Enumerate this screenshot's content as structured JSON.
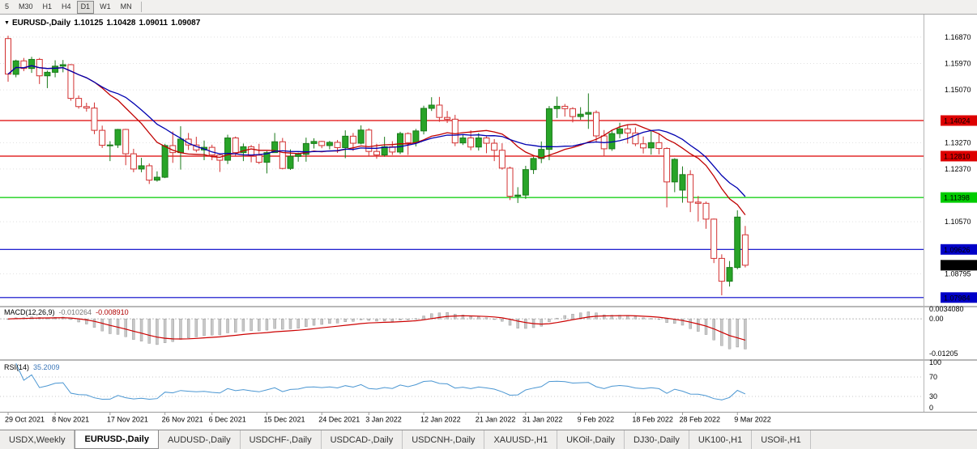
{
  "icons": {
    "dropdown": "▼"
  },
  "toolbar": {
    "timeframes": [
      {
        "label": "5",
        "active": false
      },
      {
        "label": "M30",
        "active": false
      },
      {
        "label": "H1",
        "active": false
      },
      {
        "label": "H4",
        "active": false
      },
      {
        "label": "D1",
        "active": true
      },
      {
        "label": "W1",
        "active": false
      },
      {
        "label": "MN",
        "active": false
      }
    ]
  },
  "chart": {
    "symbol_title": "EURUSD-,Daily",
    "open": "1.10125",
    "high": "1.10428",
    "low": "1.09011",
    "close": "1.09087",
    "price_axis_labels": [
      "1.16870",
      "1.15970",
      "1.15070",
      "1.13270",
      "1.12370",
      "1.10570",
      "1.08795"
    ],
    "hlines": [
      {
        "label": "1.14024",
        "value": 1.14024,
        "color": "#DD0000",
        "text_color": "#FFFFFF"
      },
      {
        "label": "1.12810",
        "value": 1.1281,
        "color": "#DD0000",
        "text_color": "#FFFFFF"
      },
      {
        "label": "1.11398",
        "value": 1.11398,
        "color": "#00CC00",
        "text_color": "#000000"
      },
      {
        "label": "1.09626",
        "value": 1.09626,
        "color": "#0000C8",
        "text_color": "#FFFFFF"
      },
      {
        "label": "1.07984",
        "value": 1.07984,
        "color": "#0000C8",
        "text_color": "#FFFFFF"
      }
    ],
    "current_price_tag": {
      "label": "1.09087",
      "value": 1.09087,
      "color": "#000000",
      "text_color": "#FFFFFF"
    },
    "colors": {
      "bull_fill": "#28A428",
      "bull_stroke": "#1A7A1A",
      "bear_fill": "#FFFFFF",
      "bear_stroke": "#D23030"
    }
  },
  "chart_data": {
    "type": "candlestick",
    "symbol": "EURUSD",
    "timeframe": "Daily",
    "y_range": [
      1.0773,
      1.1753
    ],
    "overlays": [
      {
        "name": "ma-fast-line",
        "period": 12,
        "color": "#C00000"
      },
      {
        "name": "ma-slow-line",
        "period": 16,
        "color": "#0000B0"
      }
    ],
    "date_ticks": [
      {
        "label": "29 Oct 2021",
        "index": 0
      },
      {
        "label": "8 Nov 2021",
        "index": 6
      },
      {
        "label": "17 Nov 2021",
        "index": 13
      },
      {
        "label": "26 Nov 2021",
        "index": 20
      },
      {
        "label": "6 Dec 2021",
        "index": 26
      },
      {
        "label": "15 Dec 2021",
        "index": 33
      },
      {
        "label": "24 Dec 2021",
        "index": 40
      },
      {
        "label": "3 Jan 2022",
        "index": 46
      },
      {
        "label": "12 Jan 2022",
        "index": 53
      },
      {
        "label": "21 Jan 2022",
        "index": 60
      },
      {
        "label": "31 Jan 2022",
        "index": 66
      },
      {
        "label": "9 Feb 2022",
        "index": 73
      },
      {
        "label": "18 Feb 2022",
        "index": 80
      },
      {
        "label": "28 Feb 2022",
        "index": 86
      },
      {
        "label": "9 Mar 2022",
        "index": 93
      }
    ],
    "candles": [
      [
        1.1682,
        1.1692,
        1.1535,
        1.1561
      ],
      [
        1.156,
        1.161,
        1.155,
        1.1606
      ],
      [
        1.1606,
        1.1616,
        1.1571,
        1.158
      ],
      [
        1.158,
        1.162,
        1.1565,
        1.1611
      ],
      [
        1.1611,
        1.1616,
        1.1527,
        1.1555
      ],
      [
        1.1555,
        1.1573,
        1.1513,
        1.1567
      ],
      [
        1.1567,
        1.1608,
        1.155,
        1.1588
      ],
      [
        1.1588,
        1.1609,
        1.1567,
        1.1593
      ],
      [
        1.1593,
        1.1595,
        1.147,
        1.1478
      ],
      [
        1.1478,
        1.1488,
        1.1443,
        1.145
      ],
      [
        1.145,
        1.1463,
        1.1433,
        1.1445
      ],
      [
        1.1445,
        1.1464,
        1.1356,
        1.1369
      ],
      [
        1.1369,
        1.1385,
        1.1309,
        1.1318
      ],
      [
        1.1318,
        1.1332,
        1.1264,
        1.1319
      ],
      [
        1.1319,
        1.1374,
        1.1309,
        1.1372
      ],
      [
        1.1372,
        1.1374,
        1.125,
        1.1289
      ],
      [
        1.1289,
        1.1306,
        1.1226,
        1.1237
      ],
      [
        1.1237,
        1.1275,
        1.1226,
        1.1248
      ],
      [
        1.1248,
        1.1256,
        1.1186,
        1.1199
      ],
      [
        1.1199,
        1.1229,
        1.1194,
        1.1209
      ],
      [
        1.1209,
        1.1323,
        1.1206,
        1.1317
      ],
      [
        1.1317,
        1.1365,
        1.1258,
        1.1293
      ],
      [
        1.1293,
        1.1383,
        1.1235,
        1.1339
      ],
      [
        1.1339,
        1.136,
        1.1302,
        1.1319
      ],
      [
        1.1319,
        1.1347,
        1.1294,
        1.1302
      ],
      [
        1.1302,
        1.1334,
        1.1267,
        1.1311
      ],
      [
        1.1311,
        1.132,
        1.1267,
        1.1285
      ],
      [
        1.1285,
        1.1288,
        1.1227,
        1.1267
      ],
      [
        1.1267,
        1.1354,
        1.1254,
        1.1343
      ],
      [
        1.1343,
        1.1348,
        1.1282,
        1.1293
      ],
      [
        1.1293,
        1.1324,
        1.1264,
        1.1313
      ],
      [
        1.1313,
        1.1319,
        1.126,
        1.1284
      ],
      [
        1.1284,
        1.1323,
        1.1254,
        1.126
      ],
      [
        1.126,
        1.1298,
        1.1222,
        1.1293
      ],
      [
        1.1293,
        1.136,
        1.1292,
        1.133
      ],
      [
        1.133,
        1.1343,
        1.1236,
        1.1239
      ],
      [
        1.1239,
        1.1304,
        1.1234,
        1.128
      ],
      [
        1.128,
        1.1293,
        1.1262,
        1.1287
      ],
      [
        1.1287,
        1.1344,
        1.1262,
        1.1324
      ],
      [
        1.1324,
        1.1342,
        1.1307,
        1.1331
      ],
      [
        1.1331,
        1.1333,
        1.1308,
        1.1317
      ],
      [
        1.1317,
        1.1333,
        1.1304,
        1.1328
      ],
      [
        1.1328,
        1.1336,
        1.1292,
        1.131
      ],
      [
        1.131,
        1.1369,
        1.1274,
        1.1349
      ],
      [
        1.1349,
        1.136,
        1.1299,
        1.1325
      ],
      [
        1.1325,
        1.1386,
        1.1321,
        1.137
      ],
      [
        1.137,
        1.1376,
        1.1279,
        1.1297
      ],
      [
        1.1297,
        1.1323,
        1.1272,
        1.1285
      ],
      [
        1.1285,
        1.1347,
        1.1279,
        1.1313
      ],
      [
        1.1313,
        1.1332,
        1.1285,
        1.1295
      ],
      [
        1.1295,
        1.1364,
        1.1288,
        1.1358
      ],
      [
        1.1358,
        1.1362,
        1.1285,
        1.1327
      ],
      [
        1.1327,
        1.1374,
        1.1314,
        1.1367
      ],
      [
        1.1367,
        1.1453,
        1.1355,
        1.1444
      ],
      [
        1.1444,
        1.1482,
        1.1435,
        1.1455
      ],
      [
        1.1455,
        1.1483,
        1.1398,
        1.1413
      ],
      [
        1.1413,
        1.1435,
        1.1394,
        1.1407
      ],
      [
        1.1407,
        1.1422,
        1.1315,
        1.1326
      ],
      [
        1.1326,
        1.1355,
        1.1319,
        1.1343
      ],
      [
        1.1343,
        1.1369,
        1.1301,
        1.1312
      ],
      [
        1.1312,
        1.136,
        1.13,
        1.1343
      ],
      [
        1.1343,
        1.1348,
        1.1291,
        1.1325
      ],
      [
        1.1325,
        1.1339,
        1.1264,
        1.1301
      ],
      [
        1.1301,
        1.1325,
        1.1235,
        1.124
      ],
      [
        1.124,
        1.1245,
        1.1131,
        1.1144
      ],
      [
        1.1144,
        1.1175,
        1.1121,
        1.1148
      ],
      [
        1.1148,
        1.1248,
        1.1135,
        1.1235
      ],
      [
        1.1235,
        1.1279,
        1.122,
        1.1273
      ],
      [
        1.1273,
        1.1331,
        1.1257,
        1.1304
      ],
      [
        1.1304,
        1.1452,
        1.1267,
        1.1443
      ],
      [
        1.1443,
        1.1484,
        1.1411,
        1.1451
      ],
      [
        1.1451,
        1.1459,
        1.1416,
        1.1443
      ],
      [
        1.1443,
        1.1448,
        1.1396,
        1.1416
      ],
      [
        1.1416,
        1.1448,
        1.1405,
        1.1424
      ],
      [
        1.1424,
        1.1495,
        1.1374,
        1.143
      ],
      [
        1.143,
        1.1437,
        1.133,
        1.135
      ],
      [
        1.135,
        1.137,
        1.128,
        1.1306
      ],
      [
        1.1306,
        1.1368,
        1.1299,
        1.1358
      ],
      [
        1.1358,
        1.1395,
        1.1342,
        1.1374
      ],
      [
        1.1374,
        1.1389,
        1.1324,
        1.136
      ],
      [
        1.136,
        1.1379,
        1.1315,
        1.1323
      ],
      [
        1.1323,
        1.1348,
        1.129,
        1.1309
      ],
      [
        1.1309,
        1.1368,
        1.1286,
        1.1327
      ],
      [
        1.1327,
        1.1359,
        1.1287,
        1.1307
      ],
      [
        1.1307,
        1.1311,
        1.1106,
        1.1193
      ],
      [
        1.1193,
        1.1274,
        1.1158,
        1.127
      ],
      [
        1.1165,
        1.1246,
        1.1122,
        1.1218
      ],
      [
        1.1218,
        1.1233,
        1.109,
        1.1124
      ],
      [
        1.1124,
        1.1145,
        1.1058,
        1.112
      ],
      [
        1.112,
        1.1126,
        1.1033,
        1.1066
      ],
      [
        1.1066,
        1.1068,
        1.0916,
        1.0932
      ],
      [
        1.0932,
        1.0946,
        1.0806,
        1.0854
      ],
      [
        1.0854,
        1.0923,
        1.0836,
        1.0901
      ],
      [
        1.0901,
        1.1096,
        1.0895,
        1.1073
      ],
      [
        1.10125,
        1.10428,
        1.09011,
        1.09087
      ]
    ]
  },
  "macd": {
    "name": "MACD(12,26,9)",
    "value_main": "-0.010264",
    "value_signal": "-0.008910",
    "fast": 12,
    "slow": 26,
    "signal": 9,
    "range": [
      -0.0135,
      0.004
    ],
    "histogram_color": "#C8C8C8",
    "signal_color": "#CC0000",
    "axis_labels": [
      {
        "text": "0.0034080",
        "value": 0.003408
      },
      {
        "text": "0.00",
        "value": 0
      },
      {
        "text": "-0.01205",
        "value": -0.01205
      }
    ]
  },
  "rsi": {
    "name": "RSI(14)",
    "value": "35.2009",
    "period": 14,
    "range": [
      0,
      100
    ],
    "line_color": "#4A96D2",
    "axis_labels": [
      {
        "text": "100",
        "value": 100
      },
      {
        "text": "70",
        "value": 70
      },
      {
        "text": "30",
        "value": 30
      },
      {
        "text": "0",
        "value": 0
      }
    ]
  },
  "tabs": [
    {
      "label": "USDX,Weekly",
      "active": false
    },
    {
      "label": "EURUSD-,Daily",
      "active": true
    },
    {
      "label": "AUDUSD-,Daily",
      "active": false
    },
    {
      "label": "USDCHF-,Daily",
      "active": false
    },
    {
      "label": "USDCAD-,Daily",
      "active": false
    },
    {
      "label": "USDCNH-,Daily",
      "active": false
    },
    {
      "label": "XAUUSD-,H1",
      "active": false
    },
    {
      "label": "UKOil-,Daily",
      "active": false
    },
    {
      "label": "DJ30-,Daily",
      "active": false
    },
    {
      "label": "UK100-,H1",
      "active": false
    },
    {
      "label": "USOil-,H1",
      "active": false
    }
  ]
}
